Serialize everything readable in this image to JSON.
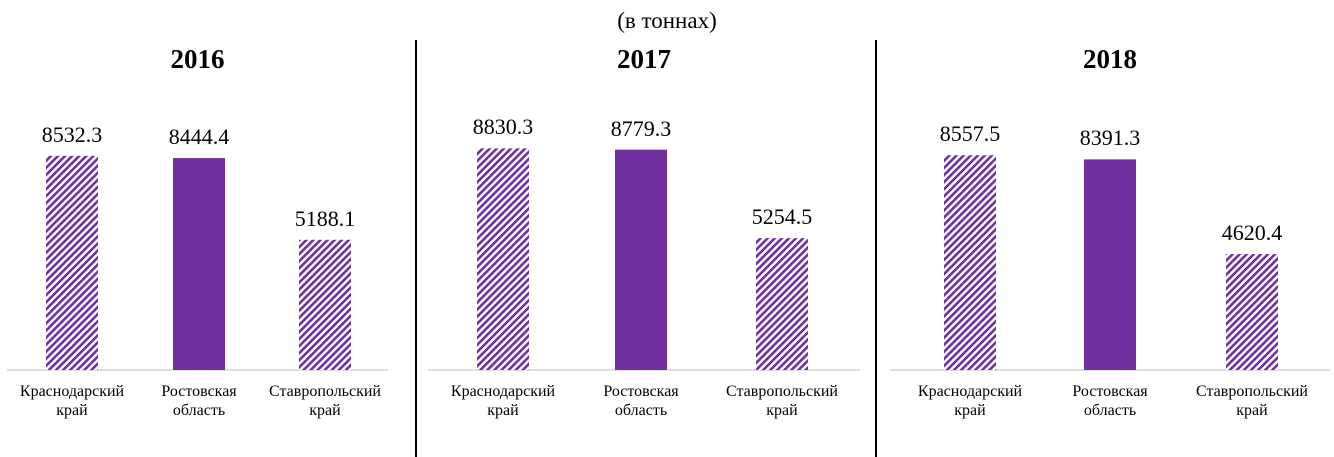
{
  "header": {
    "subtitle": "(в тоннах)"
  },
  "chart_data": [
    {
      "type": "bar",
      "title": "2016",
      "categories": [
        "Краснодарский край",
        "Ростовская область",
        "Ставропольский край"
      ],
      "values": [
        8532.3,
        8444.4,
        5188.1
      ],
      "color": "#7030a0",
      "patterns": [
        "hatch",
        "solid",
        "hatch"
      ],
      "ylim": [
        0,
        10000
      ]
    },
    {
      "type": "bar",
      "title": "2017",
      "categories": [
        "Краснодарский край",
        "Ростовская область",
        "Ставропольский край"
      ],
      "values": [
        8830.3,
        8779.3,
        5254.5
      ],
      "color": "#7030a0",
      "patterns": [
        "hatch",
        "solid",
        "hatch"
      ],
      "ylim": [
        0,
        10000
      ]
    },
    {
      "type": "bar",
      "title": "2018",
      "categories": [
        "Краснодарский край",
        "Ростовская область",
        "Ставропольский край"
      ],
      "values": [
        8557.5,
        8391.3,
        4620.4
      ],
      "color": "#7030a0",
      "patterns": [
        "hatch",
        "solid",
        "hatch"
      ],
      "ylim": [
        0,
        10000
      ]
    }
  ]
}
